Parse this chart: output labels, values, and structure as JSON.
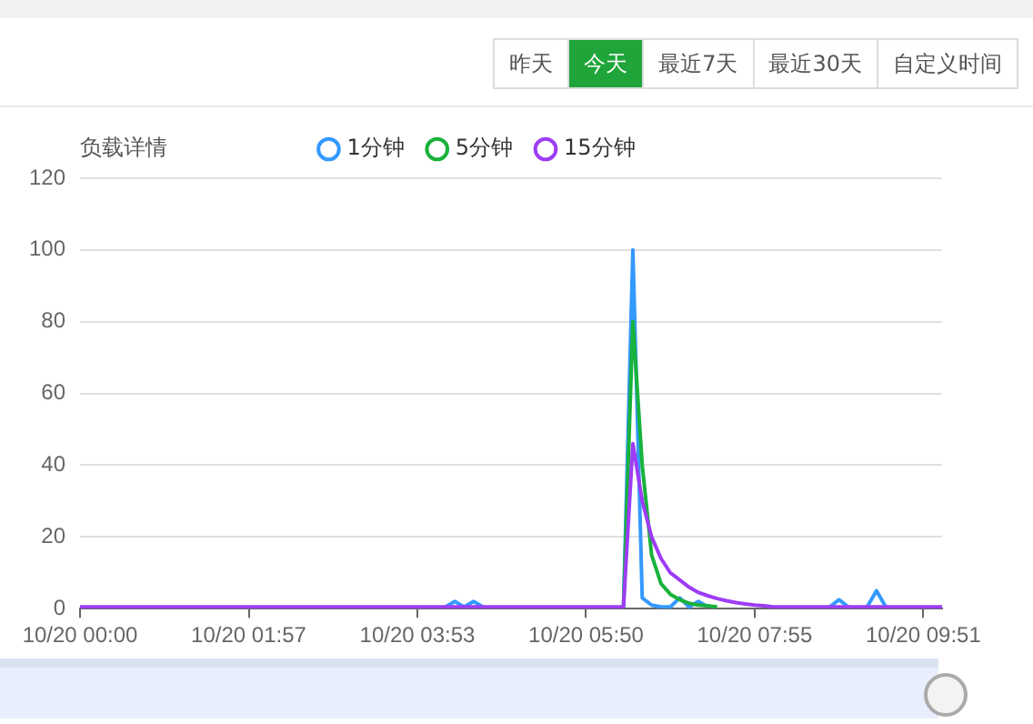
{
  "chart_data": {
    "type": "line",
    "ylabel": "负载详情",
    "annotations": [
      "昨天",
      "今天",
      "最近7天",
      "最近30天",
      "自定义时间"
    ],
    "categories": [
      "10/20 00:00",
      null,
      null,
      null,
      null,
      null,
      null,
      null,
      null,
      null,
      null,
      null,
      null,
      null,
      null,
      null,
      null,
      null,
      "10/20 01:57",
      null,
      null,
      null,
      null,
      null,
      null,
      null,
      null,
      null,
      null,
      null,
      null,
      null,
      null,
      null,
      null,
      null,
      "10/20 03:53",
      null,
      null,
      null,
      null,
      null,
      null,
      null,
      null,
      null,
      null,
      null,
      null,
      null,
      null,
      null,
      null,
      null,
      "10/20 05:50",
      null,
      null,
      null,
      null,
      null,
      null,
      null,
      null,
      null,
      null,
      null,
      null,
      null,
      null,
      null,
      null,
      null,
      "10/20 07:55",
      null,
      null,
      null,
      null,
      null,
      null,
      null,
      null,
      null,
      null,
      null,
      null,
      null,
      null,
      null,
      null,
      null,
      "10/20 09:51",
      null,
      null
    ],
    "series": [
      {
        "name": "1分钟",
        "color": "#3399ff",
        "values": [
          null,
          null,
          null,
          null,
          null,
          null,
          null,
          null,
          null,
          null,
          null,
          null,
          null,
          null,
          null,
          null,
          null,
          null,
          null,
          null,
          null,
          null,
          null,
          null,
          null,
          null,
          null,
          null,
          null,
          null,
          null,
          null,
          null,
          null,
          null,
          null,
          null,
          null,
          null,
          0.5,
          2,
          0.5,
          2,
          0.5,
          null,
          null,
          null,
          null,
          null,
          null,
          null,
          null,
          null,
          null,
          null,
          null,
          null,
          null,
          0.5,
          100,
          3,
          1,
          0.5,
          0.5,
          3,
          0.5,
          2,
          0.5,
          null,
          null,
          null,
          null,
          null,
          null,
          null,
          null,
          null,
          null,
          null,
          null,
          0.5,
          2.5,
          0.5,
          null,
          0.5,
          5,
          0.5,
          null,
          null,
          null,
          null,
          null,
          null
        ]
      },
      {
        "name": "5分钟",
        "color": "#19b23b",
        "values": [
          null,
          null,
          null,
          null,
          null,
          null,
          null,
          null,
          null,
          null,
          null,
          null,
          null,
          null,
          null,
          null,
          null,
          null,
          null,
          null,
          null,
          null,
          null,
          null,
          null,
          null,
          null,
          null,
          null,
          null,
          null,
          null,
          null,
          null,
          null,
          null,
          null,
          null,
          null,
          null,
          null,
          null,
          null,
          null,
          null,
          null,
          null,
          null,
          null,
          null,
          null,
          null,
          null,
          null,
          null,
          null,
          null,
          null,
          0.5,
          80,
          40,
          15,
          7,
          4,
          2.5,
          1.5,
          1,
          0.8,
          0.5,
          null,
          null,
          null,
          null,
          null,
          null,
          null,
          null,
          null,
          null,
          null,
          null,
          null,
          null,
          null,
          null,
          null,
          null,
          null,
          null,
          null,
          null,
          null,
          null
        ]
      },
      {
        "name": "15分钟",
        "color": "#9d3cf5",
        "values": [
          0.5,
          0.5,
          0.5,
          0.5,
          0.5,
          0.5,
          0.5,
          0.5,
          0.5,
          0.5,
          0.5,
          0.5,
          0.5,
          0.5,
          0.5,
          0.5,
          0.5,
          0.5,
          0.5,
          0.5,
          0.5,
          0.5,
          0.5,
          0.5,
          0.5,
          0.5,
          0.5,
          0.5,
          0.5,
          0.5,
          0.5,
          0.5,
          0.5,
          0.5,
          0.5,
          0.5,
          0.5,
          0.5,
          0.5,
          0.5,
          0.5,
          0.5,
          0.5,
          0.5,
          0.5,
          0.5,
          0.5,
          0.5,
          0.5,
          0.5,
          0.5,
          0.5,
          0.5,
          0.5,
          0.5,
          0.5,
          0.5,
          0.5,
          0.5,
          46,
          30,
          20,
          14,
          10,
          8,
          6,
          4.5,
          3.6,
          2.8,
          2.2,
          1.7,
          1.3,
          1,
          0.8,
          0.5,
          0.5,
          0.5,
          0.5,
          0.5,
          0.5,
          0.5,
          0.5,
          0.5,
          0.5,
          0.5,
          0.5,
          0.5,
          0.5,
          0.5,
          0.5,
          0.5,
          0.5,
          0.5
        ]
      }
    ],
    "ylim": [
      0,
      120
    ],
    "yticks": [
      0,
      20,
      40,
      60,
      80,
      100,
      120
    ],
    "grid": "y",
    "legend": "top",
    "line_style": "solid"
  }
}
